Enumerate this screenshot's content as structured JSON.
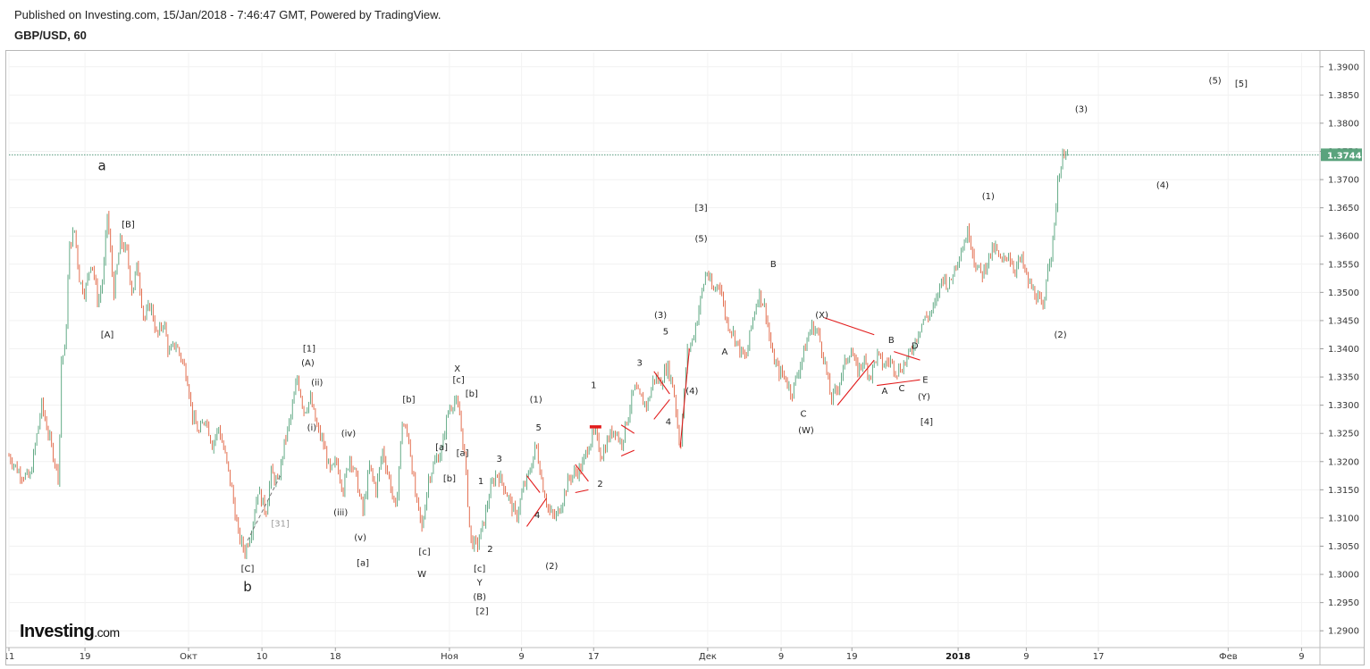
{
  "header": {
    "published": "Published on Investing.com, 15/Jan/2018 - 7:46:47 GMT, Powered by TradingView.",
    "symbol": "GBP/USD, 60"
  },
  "brand": {
    "logo_main": "Investing",
    "logo_suffix": ".com"
  },
  "colors": {
    "up": "#53a27a",
    "down": "#e0603e",
    "wave_line": "#e21b1b",
    "price_tag": "#5aa37d",
    "frame": "#b8b8b8"
  },
  "chart_data": {
    "type": "candlestick",
    "title": "GBP/USD, 60",
    "ylim": [
      1.2875,
      1.3925
    ],
    "y_ticks": [
      "1.2900",
      "1.2950",
      "1.3000",
      "1.3050",
      "1.3100",
      "1.3150",
      "1.3200",
      "1.3250",
      "1.3300",
      "1.3350",
      "1.3400",
      "1.3450",
      "1.3500",
      "1.3550",
      "1.3600",
      "1.3650",
      "1.3700",
      "1.3750",
      "1.3800",
      "1.3850",
      "1.3900"
    ],
    "x_ticks": [
      {
        "label": "11",
        "t": 0.0
      },
      {
        "label": "19",
        "t": 0.058
      },
      {
        "label": "Окт",
        "t": 0.137
      },
      {
        "label": "10",
        "t": 0.193
      },
      {
        "label": "18",
        "t": 0.249
      },
      {
        "label": "Ноя",
        "t": 0.336
      },
      {
        "label": "9",
        "t": 0.391
      },
      {
        "label": "17",
        "t": 0.446
      },
      {
        "label": "Дек",
        "t": 0.533
      },
      {
        "label": "9",
        "t": 0.589
      },
      {
        "label": "19",
        "t": 0.643
      },
      {
        "label": "2018",
        "t": 0.724,
        "bold": true
      },
      {
        "label": "9",
        "t": 0.776
      },
      {
        "label": "17",
        "t": 0.831
      },
      {
        "label": "Фев",
        "t": 0.93
      },
      {
        "label": "9",
        "t": 0.986
      }
    ],
    "last_price": "1.3744",
    "last_value": 1.3744,
    "price_path": [
      [
        0.0,
        1.321
      ],
      [
        0.008,
        1.318
      ],
      [
        0.016,
        1.317
      ],
      [
        0.025,
        1.33
      ],
      [
        0.03,
        1.325
      ],
      [
        0.035,
        1.32
      ],
      [
        0.038,
        1.317
      ],
      [
        0.04,
        1.338
      ],
      [
        0.043,
        1.34
      ],
      [
        0.046,
        1.358
      ],
      [
        0.05,
        1.361
      ],
      [
        0.054,
        1.352
      ],
      [
        0.058,
        1.35
      ],
      [
        0.063,
        1.356
      ],
      [
        0.068,
        1.348
      ],
      [
        0.072,
        1.353
      ],
      [
        0.075,
        1.364
      ],
      [
        0.08,
        1.35
      ],
      [
        0.085,
        1.359
      ],
      [
        0.09,
        1.357
      ],
      [
        0.094,
        1.35
      ],
      [
        0.098,
        1.355
      ],
      [
        0.103,
        1.345
      ],
      [
        0.108,
        1.348
      ],
      [
        0.113,
        1.342
      ],
      [
        0.118,
        1.345
      ],
      [
        0.122,
        1.339
      ],
      [
        0.127,
        1.341
      ],
      [
        0.132,
        1.338
      ],
      [
        0.136,
        1.335
      ],
      [
        0.14,
        1.328
      ],
      [
        0.145,
        1.325
      ],
      [
        0.15,
        1.328
      ],
      [
        0.155,
        1.323
      ],
      [
        0.16,
        1.326
      ],
      [
        0.165,
        1.321
      ],
      [
        0.17,
        1.315
      ],
      [
        0.175,
        1.307
      ],
      [
        0.18,
        1.304
      ],
      [
        0.185,
        1.308
      ],
      [
        0.19,
        1.315
      ],
      [
        0.196,
        1.311
      ],
      [
        0.2,
        1.318
      ],
      [
        0.205,
        1.316
      ],
      [
        0.21,
        1.323
      ],
      [
        0.215,
        1.328
      ],
      [
        0.22,
        1.335
      ],
      [
        0.225,
        1.329
      ],
      [
        0.23,
        1.331
      ],
      [
        0.235,
        1.326
      ],
      [
        0.24,
        1.323
      ],
      [
        0.245,
        1.318
      ],
      [
        0.25,
        1.32
      ],
      [
        0.255,
        1.315
      ],
      [
        0.26,
        1.321
      ],
      [
        0.265,
        1.317
      ],
      [
        0.27,
        1.311
      ],
      [
        0.275,
        1.319
      ],
      [
        0.28,
        1.315
      ],
      [
        0.285,
        1.322
      ],
      [
        0.29,
        1.317
      ],
      [
        0.295,
        1.311
      ],
      [
        0.3,
        1.327
      ],
      [
        0.305,
        1.324
      ],
      [
        0.31,
        1.314
      ],
      [
        0.315,
        1.308
      ],
      [
        0.32,
        1.317
      ],
      [
        0.325,
        1.32
      ],
      [
        0.33,
        1.322
      ],
      [
        0.335,
        1.329
      ],
      [
        0.34,
        1.331
      ],
      [
        0.344,
        1.328
      ],
      [
        0.348,
        1.32
      ],
      [
        0.352,
        1.306
      ],
      [
        0.357,
        1.305
      ],
      [
        0.362,
        1.309
      ],
      [
        0.367,
        1.315
      ],
      [
        0.372,
        1.318
      ],
      [
        0.377,
        1.316
      ],
      [
        0.382,
        1.313
      ],
      [
        0.387,
        1.31
      ],
      [
        0.392,
        1.315
      ],
      [
        0.397,
        1.318
      ],
      [
        0.402,
        1.323
      ],
      [
        0.407,
        1.316
      ],
      [
        0.412,
        1.311
      ],
      [
        0.417,
        1.31
      ],
      [
        0.422,
        1.313
      ],
      [
        0.427,
        1.317
      ],
      [
        0.432,
        1.318
      ],
      [
        0.437,
        1.319
      ],
      [
        0.442,
        1.323
      ],
      [
        0.447,
        1.325
      ],
      [
        0.452,
        1.321
      ],
      [
        0.457,
        1.324
      ],
      [
        0.462,
        1.326
      ],
      [
        0.467,
        1.323
      ],
      [
        0.472,
        1.328
      ],
      [
        0.477,
        1.333
      ],
      [
        0.482,
        1.331
      ],
      [
        0.487,
        1.33
      ],
      [
        0.492,
        1.335
      ],
      [
        0.497,
        1.334
      ],
      [
        0.502,
        1.337
      ],
      [
        0.507,
        1.333
      ],
      [
        0.512,
        1.322
      ],
      [
        0.517,
        1.339
      ],
      [
        0.522,
        1.342
      ],
      [
        0.527,
        1.348
      ],
      [
        0.532,
        1.354
      ],
      [
        0.537,
        1.35
      ],
      [
        0.542,
        1.352
      ],
      [
        0.547,
        1.345
      ],
      [
        0.552,
        1.343
      ],
      [
        0.557,
        1.34
      ],
      [
        0.562,
        1.338
      ],
      [
        0.567,
        1.345
      ],
      [
        0.572,
        1.35
      ],
      [
        0.577,
        1.347
      ],
      [
        0.582,
        1.339
      ],
      [
        0.587,
        1.336
      ],
      [
        0.592,
        1.335
      ],
      [
        0.597,
        1.332
      ],
      [
        0.602,
        1.336
      ],
      [
        0.607,
        1.34
      ],
      [
        0.612,
        1.344
      ],
      [
        0.617,
        1.343
      ],
      [
        0.622,
        1.338
      ],
      [
        0.627,
        1.331
      ],
      [
        0.632,
        1.333
      ],
      [
        0.637,
        1.337
      ],
      [
        0.642,
        1.34
      ],
      [
        0.647,
        1.336
      ],
      [
        0.652,
        1.338
      ],
      [
        0.657,
        1.335
      ],
      [
        0.662,
        1.339
      ],
      [
        0.667,
        1.337
      ],
      [
        0.672,
        1.338
      ],
      [
        0.677,
        1.336
      ],
      [
        0.682,
        1.337
      ],
      [
        0.687,
        1.339
      ],
      [
        0.692,
        1.342
      ],
      [
        0.697,
        1.345
      ],
      [
        0.702,
        1.346
      ],
      [
        0.707,
        1.348
      ],
      [
        0.712,
        1.353
      ],
      [
        0.717,
        1.351
      ],
      [
        0.722,
        1.355
      ],
      [
        0.727,
        1.358
      ],
      [
        0.732,
        1.361
      ],
      [
        0.737,
        1.355
      ],
      [
        0.742,
        1.353
      ],
      [
        0.747,
        1.356
      ],
      [
        0.752,
        1.358
      ],
      [
        0.757,
        1.355
      ],
      [
        0.762,
        1.357
      ],
      [
        0.767,
        1.354
      ],
      [
        0.772,
        1.356
      ],
      [
        0.777,
        1.352
      ],
      [
        0.782,
        1.35
      ],
      [
        0.787,
        1.348
      ],
      [
        0.789,
        1.346
      ],
      [
        0.792,
        1.355
      ],
      [
        0.795,
        1.357
      ],
      [
        0.797,
        1.36
      ],
      [
        0.8,
        1.37
      ],
      [
        0.803,
        1.373
      ],
      [
        0.806,
        1.376
      ],
      [
        0.808,
        1.3744
      ]
    ],
    "wave_labels": [
      {
        "text": "a",
        "t": 0.071,
        "v": 1.3717,
        "size": "big"
      },
      {
        "text": "[B]",
        "t": 0.091,
        "v": 1.3615
      },
      {
        "text": "[A]",
        "t": 0.075,
        "v": 1.342
      },
      {
        "text": "b",
        "t": 0.182,
        "v": 1.297,
        "size": "big"
      },
      {
        "text": "[C]",
        "t": 0.182,
        "v": 1.3005
      },
      {
        "text": "[31]",
        "t": 0.207,
        "v": 1.3085,
        "grey": true
      },
      {
        "text": "[1]",
        "t": 0.229,
        "v": 1.3395
      },
      {
        "text": "(A)",
        "t": 0.228,
        "v": 1.337
      },
      {
        "text": "(ii)",
        "t": 0.235,
        "v": 1.3335
      },
      {
        "text": "(i)",
        "t": 0.231,
        "v": 1.3255
      },
      {
        "text": "(iv)",
        "t": 0.259,
        "v": 1.3245
      },
      {
        "text": "(iii)",
        "t": 0.253,
        "v": 1.3105
      },
      {
        "text": "(v)",
        "t": 0.268,
        "v": 1.306
      },
      {
        "text": "[a]",
        "t": 0.27,
        "v": 1.3015
      },
      {
        "text": "[b]",
        "t": 0.305,
        "v": 1.3305
      },
      {
        "text": "[c]",
        "t": 0.317,
        "v": 1.3035
      },
      {
        "text": "W",
        "t": 0.315,
        "v": 1.2995
      },
      {
        "text": "X",
        "t": 0.342,
        "v": 1.336
      },
      {
        "text": "[c]",
        "t": 0.343,
        "v": 1.334
      },
      {
        "text": "[b]",
        "t": 0.353,
        "v": 1.3315
      },
      {
        "text": "[a]",
        "t": 0.33,
        "v": 1.322
      },
      {
        "text": "[a]",
        "t": 0.346,
        "v": 1.321
      },
      {
        "text": "[b]",
        "t": 0.336,
        "v": 1.3165
      },
      {
        "text": "1",
        "t": 0.36,
        "v": 1.316
      },
      {
        "text": "3",
        "t": 0.374,
        "v": 1.32
      },
      {
        "text": "2",
        "t": 0.367,
        "v": 1.304
      },
      {
        "text": "[c]",
        "t": 0.359,
        "v": 1.3005
      },
      {
        "text": "Y",
        "t": 0.359,
        "v": 1.298
      },
      {
        "text": "(B)",
        "t": 0.359,
        "v": 1.2955
      },
      {
        "text": "[2]",
        "t": 0.361,
        "v": 1.293
      },
      {
        "text": "(1)",
        "t": 0.402,
        "v": 1.3305
      },
      {
        "text": "5",
        "t": 0.404,
        "v": 1.3255
      },
      {
        "text": "4",
        "t": 0.403,
        "v": 1.31
      },
      {
        "text": "(2)",
        "t": 0.414,
        "v": 1.301
      },
      {
        "text": "1",
        "t": 0.446,
        "v": 1.333
      },
      {
        "text": "2",
        "t": 0.451,
        "v": 1.3155
      },
      {
        "text": "3",
        "t": 0.481,
        "v": 1.337
      },
      {
        "text": "(3)",
        "t": 0.497,
        "v": 1.3455
      },
      {
        "text": "5",
        "t": 0.501,
        "v": 1.3425
      },
      {
        "text": "4",
        "t": 0.503,
        "v": 1.3265
      },
      {
        "text": "(4)",
        "t": 0.521,
        "v": 1.332
      },
      {
        "text": "[3]",
        "t": 0.528,
        "v": 1.3645
      },
      {
        "text": "(5)",
        "t": 0.528,
        "v": 1.359
      },
      {
        "text": "A",
        "t": 0.546,
        "v": 1.339
      },
      {
        "text": "B",
        "t": 0.583,
        "v": 1.3545
      },
      {
        "text": "C",
        "t": 0.606,
        "v": 1.328
      },
      {
        "text": "(W)",
        "t": 0.608,
        "v": 1.325
      },
      {
        "text": "(X)",
        "t": 0.62,
        "v": 1.3455
      },
      {
        "text": "A",
        "t": 0.668,
        "v": 1.332
      },
      {
        "text": "B",
        "t": 0.673,
        "v": 1.341
      },
      {
        "text": "C",
        "t": 0.681,
        "v": 1.3325
      },
      {
        "text": "D",
        "t": 0.691,
        "v": 1.34
      },
      {
        "text": "E",
        "t": 0.699,
        "v": 1.334
      },
      {
        "text": "(Y)",
        "t": 0.698,
        "v": 1.331
      },
      {
        "text": "[4]",
        "t": 0.7,
        "v": 1.3265
      },
      {
        "text": "(1)",
        "t": 0.747,
        "v": 1.3665
      },
      {
        "text": "(2)",
        "t": 0.802,
        "v": 1.342
      },
      {
        "text": "(3)",
        "t": 0.818,
        "v": 1.382
      },
      {
        "text": "(4)",
        "t": 0.88,
        "v": 1.3685
      },
      {
        "text": "(5)",
        "t": 0.92,
        "v": 1.387
      },
      {
        "text": "[5]",
        "t": 0.94,
        "v": 1.3865
      }
    ],
    "wave_lines": [
      [
        [
          0.395,
          1.3085
        ],
        [
          0.41,
          1.3135
        ]
      ],
      [
        [
          0.395,
          1.3175
        ],
        [
          0.405,
          1.3145
        ]
      ],
      [
        [
          0.432,
          1.3145
        ],
        [
          0.442,
          1.315
        ]
      ],
      [
        [
          0.432,
          1.3195
        ],
        [
          0.442,
          1.3165
        ]
      ],
      [
        [
          0.467,
          1.321
        ],
        [
          0.477,
          1.322
        ]
      ],
      [
        [
          0.467,
          1.3265
        ],
        [
          0.477,
          1.325
        ]
      ],
      [
        [
          0.492,
          1.3275
        ],
        [
          0.504,
          1.331
        ]
      ],
      [
        [
          0.492,
          1.336
        ],
        [
          0.504,
          1.332
        ]
      ],
      [
        [
          0.512,
          1.3225
        ],
        [
          0.519,
          1.34
        ]
      ],
      [
        [
          0.622,
          1.3455
        ],
        [
          0.66,
          1.3425
        ]
      ],
      [
        [
          0.632,
          1.33
        ],
        [
          0.66,
          1.338
        ]
      ],
      [
        [
          0.662,
          1.3335
        ],
        [
          0.695,
          1.3345
        ]
      ],
      [
        [
          0.675,
          1.3395
        ],
        [
          0.695,
          1.338
        ]
      ]
    ],
    "wave_dashed": [
      [
        [
          0.182,
          1.306
        ],
        [
          0.207,
          1.3175
        ]
      ]
    ]
  }
}
